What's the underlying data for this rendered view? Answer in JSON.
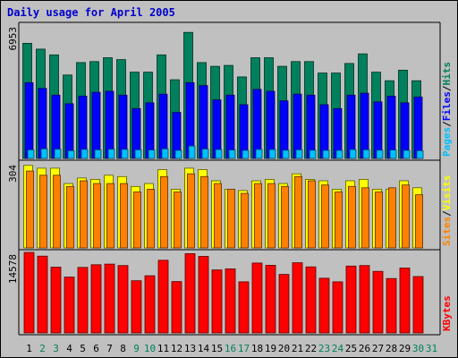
{
  "chart_data": [
    {
      "type": "bar",
      "title": "Daily usage for April 2005",
      "panel": "top",
      "y_max_label": "6953",
      "ylim": [
        0,
        6953
      ],
      "categories": [
        "1",
        "2",
        "3",
        "4",
        "5",
        "6",
        "7",
        "8",
        "9",
        "10",
        "11",
        "12",
        "13",
        "14",
        "15",
        "16",
        "17",
        "18",
        "19",
        "20",
        "21",
        "22",
        "23",
        "24",
        "25",
        "26",
        "27",
        "28",
        "29",
        "30",
        "31"
      ],
      "weekend_days": [
        "2",
        "3",
        "9",
        "10",
        "16",
        "17",
        "23",
        "24",
        "30",
        "31"
      ],
      "series": [
        {
          "name": "Hits",
          "values": [
            6000,
            5700,
            5400,
            4350,
            5000,
            5050,
            5250,
            5150,
            4500,
            4500,
            5400,
            4100,
            6570,
            5000,
            4800,
            4850,
            4250,
            5250,
            5250,
            4800,
            5050,
            5050,
            4450,
            4450,
            4950,
            5450,
            4500,
            4050,
            4600,
            4050,
            0
          ]
        },
        {
          "name": "Files",
          "values": [
            3950,
            3650,
            3300,
            2850,
            3250,
            3450,
            3500,
            3300,
            2600,
            2900,
            3350,
            2400,
            3950,
            3800,
            3050,
            3300,
            2800,
            3600,
            3500,
            3000,
            3350,
            3300,
            2800,
            2600,
            3300,
            3400,
            2950,
            3250,
            2900,
            3200,
            0
          ]
        },
        {
          "name": "Pages",
          "values": [
            450,
            500,
            480,
            400,
            470,
            450,
            480,
            470,
            450,
            440,
            500,
            420,
            650,
            490,
            460,
            440,
            420,
            470,
            460,
            430,
            450,
            430,
            420,
            420,
            460,
            450,
            430,
            440,
            420,
            400,
            0
          ]
        }
      ],
      "legend": [
        "Pages",
        "/",
        "Files",
        "/",
        "Hits"
      ]
    },
    {
      "type": "bar",
      "panel": "middle",
      "y_max_label": "304",
      "ylim": [
        0,
        304
      ],
      "categories": [
        "1",
        "2",
        "3",
        "4",
        "5",
        "6",
        "7",
        "8",
        "9",
        "10",
        "11",
        "12",
        "13",
        "14",
        "15",
        "16",
        "17",
        "18",
        "19",
        "20",
        "21",
        "22",
        "23",
        "24",
        "25",
        "26",
        "27",
        "28",
        "29",
        "30",
        "31"
      ],
      "series": [
        {
          "name": "Visits",
          "values": [
            295,
            285,
            285,
            230,
            250,
            245,
            260,
            255,
            220,
            230,
            280,
            210,
            285,
            280,
            240,
            210,
            205,
            240,
            245,
            230,
            265,
            245,
            240,
            210,
            240,
            245,
            210,
            210,
            240,
            215,
            0
          ]
        },
        {
          "name": "Sites",
          "values": [
            275,
            260,
            260,
            220,
            240,
            230,
            230,
            230,
            200,
            210,
            255,
            200,
            265,
            255,
            230,
            210,
            195,
            230,
            230,
            220,
            255,
            240,
            225,
            200,
            220,
            215,
            200,
            215,
            225,
            190,
            0
          ]
        }
      ],
      "legend": [
        "Sites",
        "/",
        "Visits"
      ]
    },
    {
      "type": "bar",
      "panel": "bottom",
      "y_max_label": "14578",
      "ylim": [
        0,
        14578
      ],
      "categories": [
        "1",
        "2",
        "3",
        "4",
        "5",
        "6",
        "7",
        "8",
        "9",
        "10",
        "11",
        "12",
        "13",
        "14",
        "15",
        "16",
        "17",
        "18",
        "19",
        "20",
        "21",
        "22",
        "23",
        "24",
        "25",
        "26",
        "27",
        "28",
        "29",
        "30",
        "31"
      ],
      "series": [
        {
          "name": "KBytes",
          "values": [
            14578,
            13900,
            11900,
            10100,
            11850,
            12350,
            12450,
            12200,
            9450,
            10350,
            13150,
            9300,
            14350,
            13850,
            11400,
            11600,
            9250,
            12650,
            12250,
            10600,
            12700,
            11950,
            9900,
            9250,
            12100,
            12200,
            11150,
            9850,
            11750,
            10200,
            0
          ]
        }
      ],
      "legend": [
        "KBytes"
      ]
    }
  ],
  "colors": {
    "background": "#c0c0c0",
    "title": "#0000cc",
    "hits": "#00805c",
    "files": "#0000ff",
    "pages": "#00c0ff",
    "visits": "#ffff00",
    "sites": "#ff8000",
    "kbytes": "#ff0000",
    "weekday_label": "#000000",
    "weekend_label": "#00805c",
    "separator": "#000000"
  }
}
